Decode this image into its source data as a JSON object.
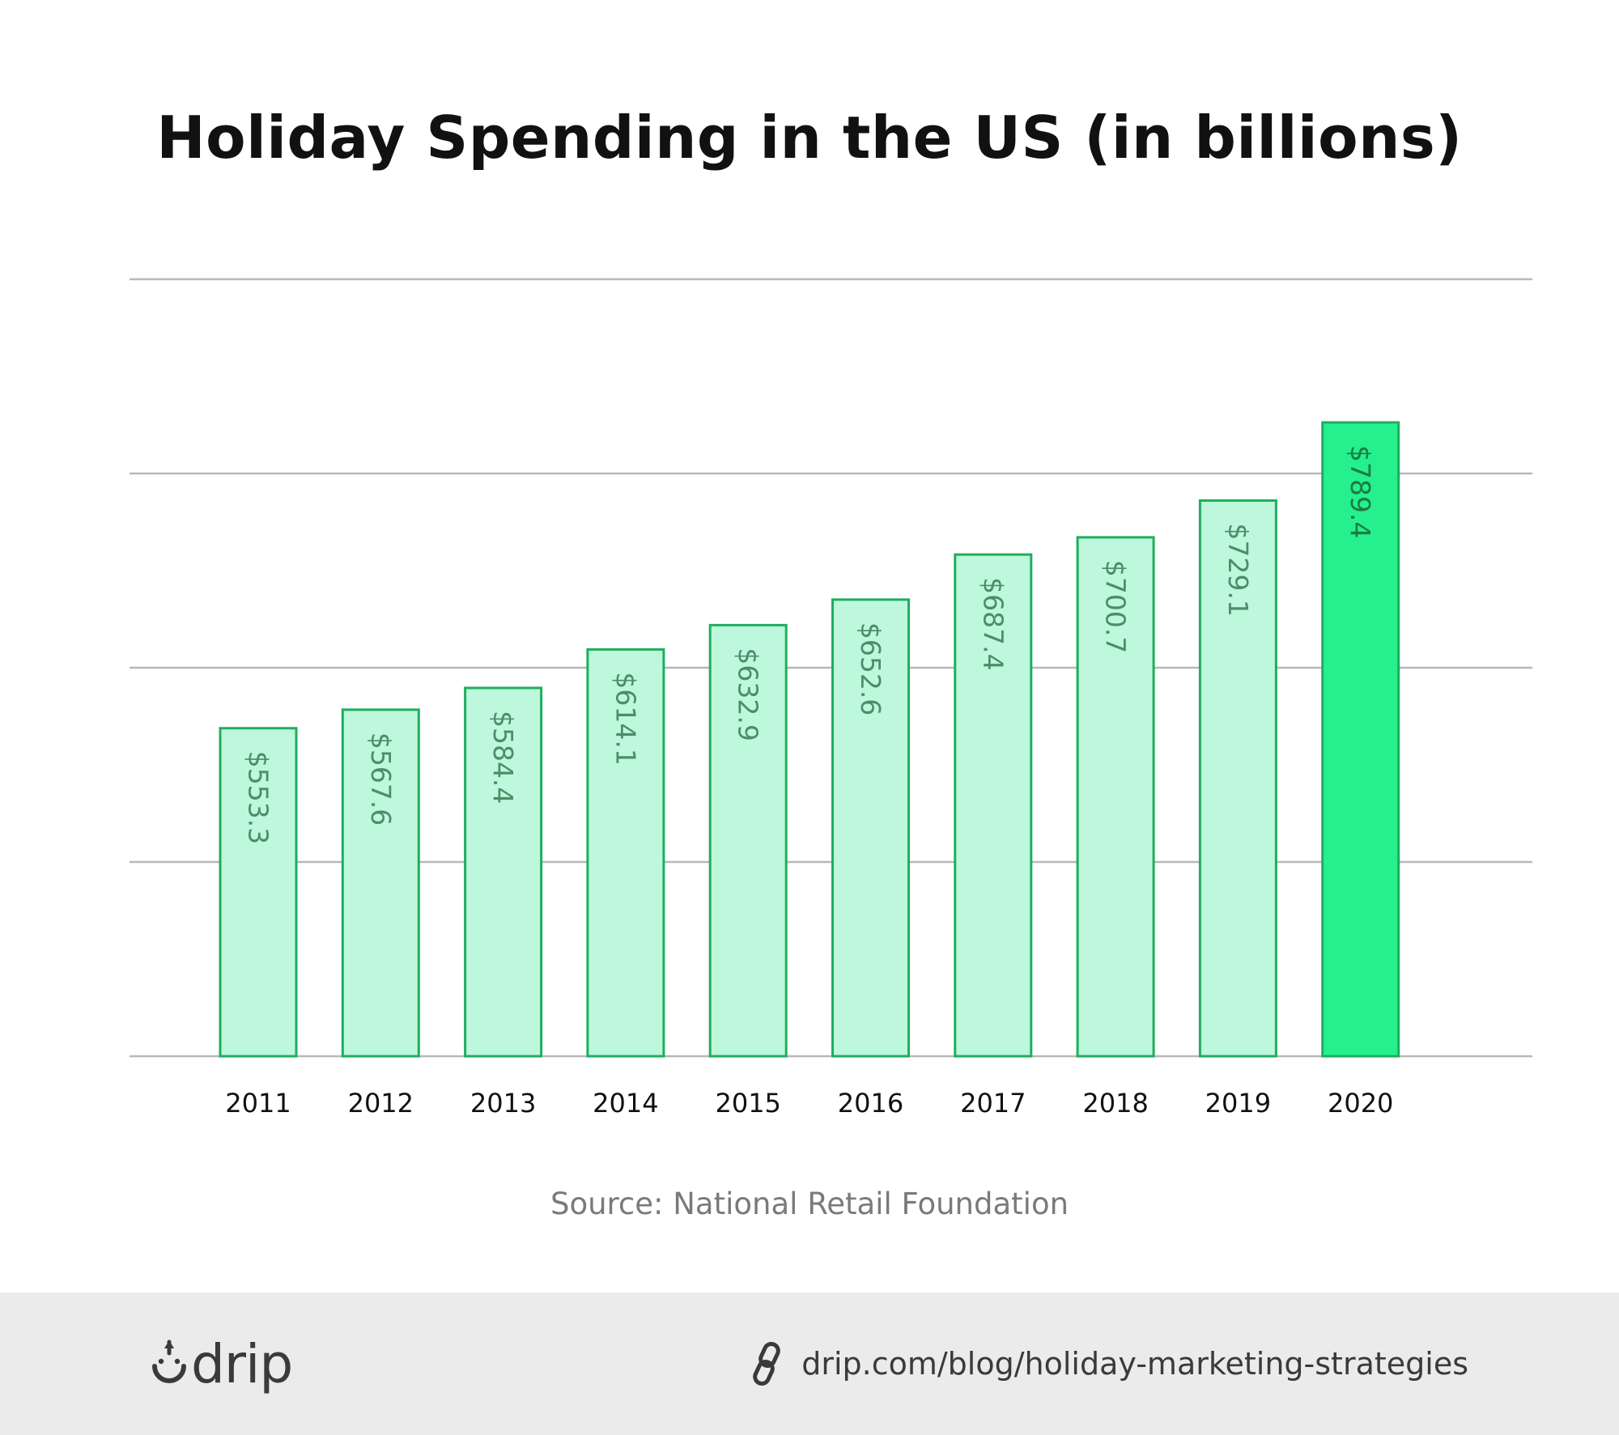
{
  "chart_data": {
    "type": "bar",
    "title": "Holiday Spending in the US (in billions)",
    "categories": [
      "2011",
      "2012",
      "2013",
      "2014",
      "2015",
      "2016",
      "2017",
      "2018",
      "2019",
      "2020"
    ],
    "values": [
      553.3,
      567.6,
      584.4,
      614.1,
      632.9,
      652.6,
      687.4,
      700.7,
      729.1,
      789.4
    ],
    "data_labels": [
      "$553.3",
      "$567.6",
      "$584.4",
      "$614.1",
      "$632.9",
      "$652.6",
      "$687.4",
      "$700.7",
      "$729.1",
      "$789.4"
    ],
    "xlabel": "",
    "ylabel": "",
    "ylim": [
      300,
      900
    ],
    "grid": true,
    "highlight_category": "2020",
    "colors": {
      "bar_fill": "#bdf8dc",
      "bar_stroke": "#1fae5e",
      "highlight_fill": "#25f08d",
      "grid": "#b8b8b8"
    }
  },
  "source": "Source: National Retail Foundation",
  "footer": {
    "brand": "drip",
    "brand_icon": "drip-logo-icon",
    "link_icon": "link-icon",
    "url": "drip.com/blog/holiday-marketing-strategies"
  }
}
